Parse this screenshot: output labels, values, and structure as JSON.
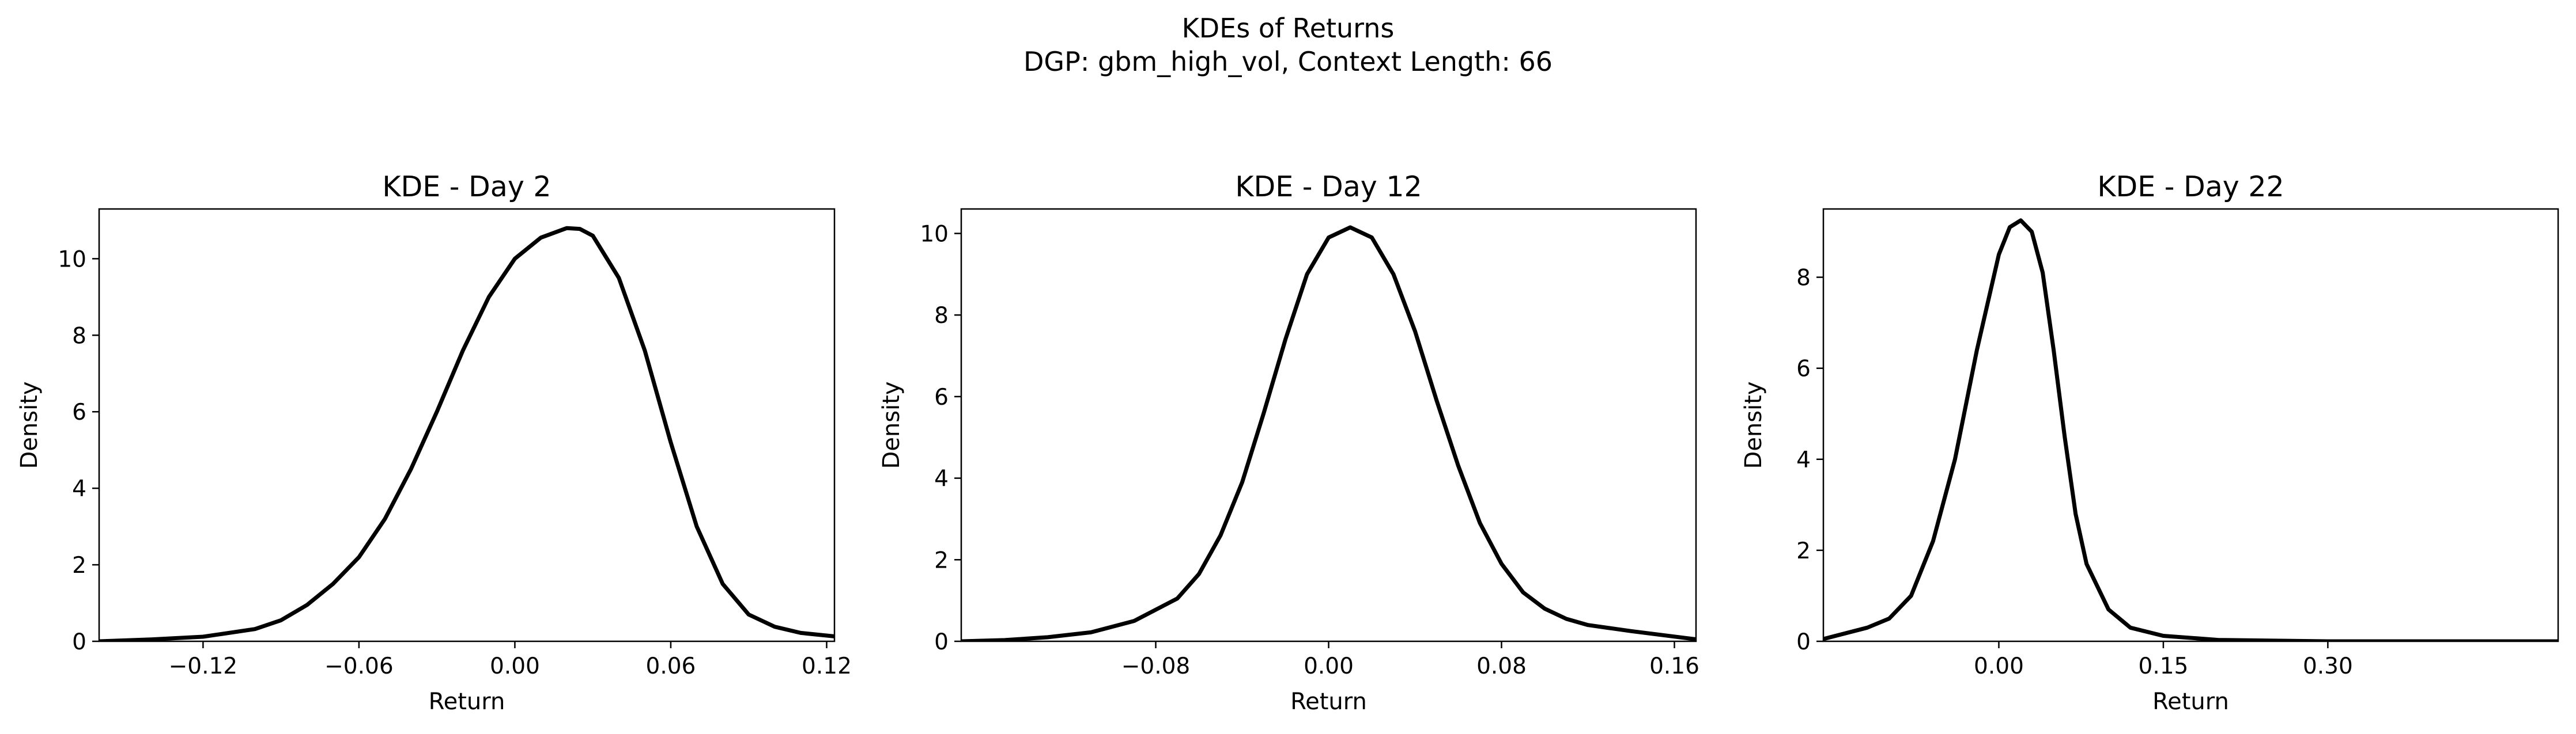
{
  "figure": {
    "title": "KDEs of Returns",
    "subtitle": "DGP: gbm_high_vol, Context Length: 66"
  },
  "chart_data": [
    {
      "type": "line",
      "title": "KDE - Day 2",
      "xlabel": "Return",
      "ylabel": "Density",
      "xlim": [
        -0.16,
        0.123
      ],
      "ylim": [
        0,
        11.3
      ],
      "xticks": [
        -0.12,
        -0.06,
        0.0,
        0.06,
        0.12
      ],
      "xtick_labels": [
        "−0.12",
        "−0.06",
        "0.00",
        "0.06",
        "0.12"
      ],
      "yticks": [
        0,
        2,
        4,
        6,
        8,
        10
      ],
      "ytick_labels": [
        "0",
        "2",
        "4",
        "6",
        "8",
        "10"
      ],
      "line_color": "#000000",
      "grid": false,
      "series": [
        {
          "x": [
            -0.16,
            -0.14,
            -0.12,
            -0.1,
            -0.09,
            -0.08,
            -0.07,
            -0.06,
            -0.05,
            -0.04,
            -0.03,
            -0.02,
            -0.01,
            0.0,
            0.01,
            0.02,
            0.025,
            0.03,
            0.04,
            0.05,
            0.06,
            0.07,
            0.08,
            0.09,
            0.1,
            0.11,
            0.123
          ],
          "y": [
            0.0,
            0.05,
            0.12,
            0.32,
            0.55,
            0.95,
            1.5,
            2.2,
            3.2,
            4.5,
            6.0,
            7.6,
            9.0,
            10.0,
            10.55,
            10.8,
            10.78,
            10.6,
            9.5,
            7.6,
            5.2,
            3.0,
            1.5,
            0.7,
            0.38,
            0.22,
            0.13
          ]
        }
      ]
    },
    {
      "type": "line",
      "title": "KDE - Day 12",
      "xlabel": "Return",
      "ylabel": "Density",
      "xlim": [
        -0.17,
        0.17
      ],
      "ylim": [
        0,
        10.6
      ],
      "xticks": [
        -0.08,
        0.0,
        0.08,
        0.16
      ],
      "xtick_labels": [
        "−0.08",
        "0.00",
        "0.08",
        "0.16"
      ],
      "yticks": [
        0,
        2,
        4,
        6,
        8,
        10
      ],
      "ytick_labels": [
        "0",
        "2",
        "4",
        "6",
        "8",
        "10"
      ],
      "line_color": "#000000",
      "grid": false,
      "series": [
        {
          "x": [
            -0.17,
            -0.15,
            -0.13,
            -0.11,
            -0.09,
            -0.07,
            -0.06,
            -0.05,
            -0.04,
            -0.03,
            -0.02,
            -0.01,
            0.0,
            0.01,
            0.02,
            0.03,
            0.04,
            0.05,
            0.06,
            0.07,
            0.08,
            0.09,
            0.1,
            0.11,
            0.12,
            0.14,
            0.17
          ],
          "y": [
            0.0,
            0.03,
            0.1,
            0.22,
            0.5,
            1.05,
            1.65,
            2.6,
            3.9,
            5.6,
            7.4,
            9.0,
            9.9,
            10.15,
            9.9,
            9.0,
            7.6,
            5.9,
            4.3,
            2.9,
            1.9,
            1.2,
            0.8,
            0.55,
            0.4,
            0.25,
            0.05
          ]
        }
      ]
    },
    {
      "type": "line",
      "title": "KDE - Day 22",
      "xlabel": "Return",
      "ylabel": "Density",
      "xlim": [
        -0.16,
        0.51
      ],
      "ylim": [
        0,
        9.5
      ],
      "xticks": [
        0.0,
        0.15,
        0.3
      ],
      "xtick_labels": [
        "0.00",
        "0.15",
        "0.30"
      ],
      "yticks": [
        0,
        2,
        4,
        6,
        8
      ],
      "ytick_labels": [
        "0",
        "2",
        "4",
        "6",
        "8"
      ],
      "line_color": "#000000",
      "grid": false,
      "series": [
        {
          "x": [
            -0.16,
            -0.12,
            -0.1,
            -0.08,
            -0.06,
            -0.04,
            -0.02,
            0.0,
            0.01,
            0.02,
            0.03,
            0.04,
            0.05,
            0.06,
            0.07,
            0.08,
            0.1,
            0.12,
            0.15,
            0.2,
            0.3,
            0.51
          ],
          "y": [
            0.05,
            0.3,
            0.5,
            1.0,
            2.2,
            4.0,
            6.4,
            8.5,
            9.1,
            9.25,
            9.0,
            8.1,
            6.4,
            4.5,
            2.8,
            1.7,
            0.7,
            0.3,
            0.12,
            0.03,
            0.0,
            0.0
          ]
        }
      ]
    }
  ]
}
